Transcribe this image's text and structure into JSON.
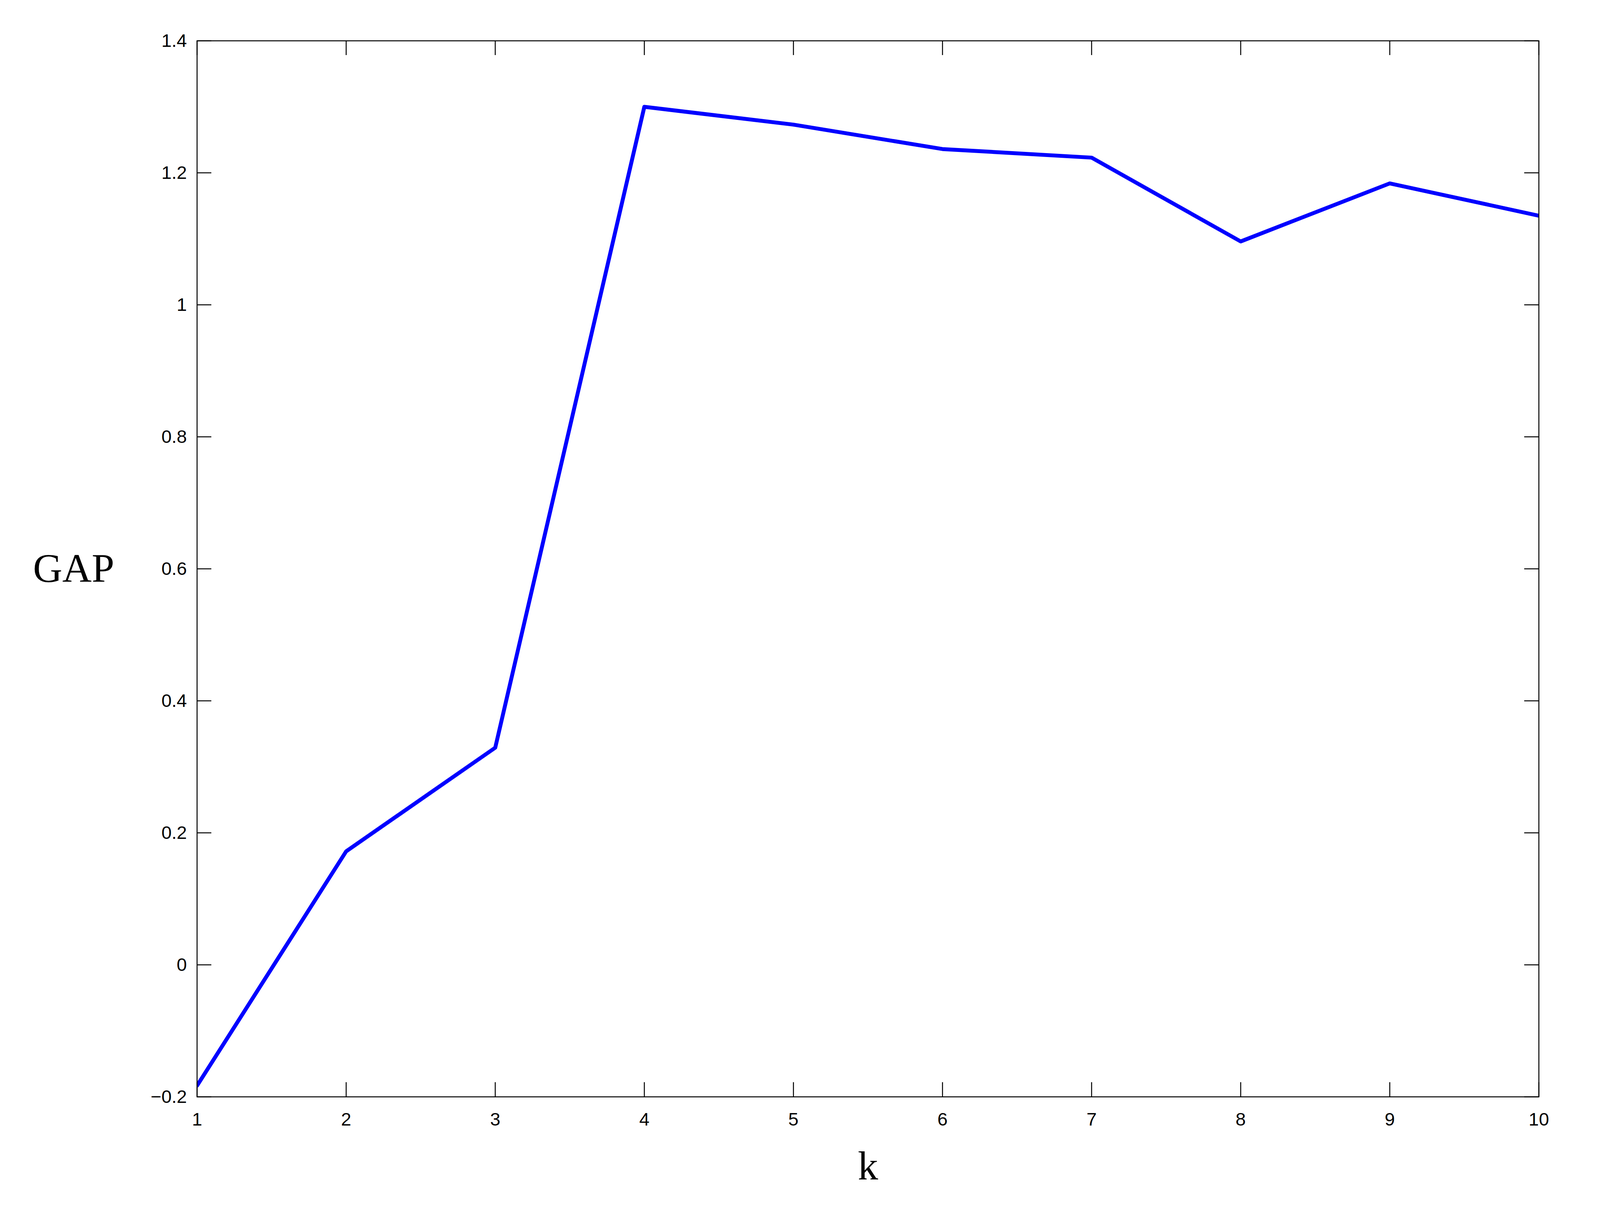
{
  "chart_data": {
    "type": "line",
    "x_label": "k",
    "y_label": "GAP",
    "x": [
      1,
      2,
      3,
      4,
      5,
      6,
      7,
      8,
      9,
      10
    ],
    "values": [
      -0.183,
      0.172,
      0.329,
      1.3,
      1.273,
      1.236,
      1.223,
      1.096,
      1.184,
      1.135
    ],
    "color": "#0000ff",
    "line_style": "solid",
    "xlim": [
      1,
      10
    ],
    "xticks": [
      1,
      2,
      3,
      4,
      5,
      6,
      7,
      8,
      9,
      10
    ],
    "ylim": [
      -0.2,
      1.4
    ],
    "yticks": [
      {
        "value": -0.2,
        "label": "−0.2"
      },
      0,
      0.2,
      0.4,
      0.6,
      0.8,
      1,
      1.2,
      1.4
    ],
    "grid": false
  }
}
